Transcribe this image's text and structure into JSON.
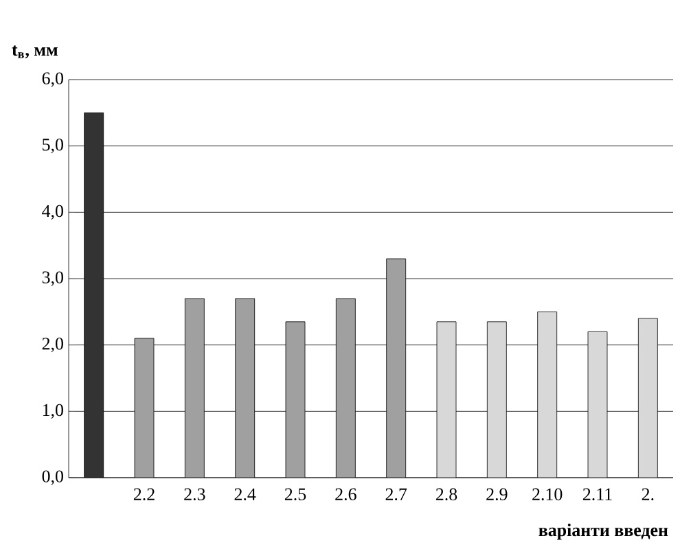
{
  "chart_data": {
    "type": "bar",
    "xlabel": "варіанти введен",
    "ylabel": "t$_{в}$, мм",
    "categories": [
      null,
      "2.2",
      "2.3",
      "2.4",
      "2.5",
      "2.6",
      "2.7",
      "2.8",
      "2.9",
      "2.10",
      "2.11",
      "2."
    ],
    "values": [
      5.5,
      2.1,
      2.7,
      2.7,
      2.35,
      2.7,
      3.3,
      2.35,
      2.35,
      2.5,
      2.2,
      2.4
    ],
    "colors": [
      "#333333",
      "#a0a0a0",
      "#a0a0a0",
      "#a0a0a0",
      "#a0a0a0",
      "#a0a0a0",
      "#a0a0a0",
      "#d8d8d8",
      "#d8d8d8",
      "#d8d8d8",
      "#d8d8d8",
      "#d8d8d8"
    ],
    "ylim": [
      0,
      6
    ],
    "yticks": [
      {
        "value": 0,
        "label": "0,0"
      },
      {
        "value": 1,
        "label": "1,0"
      },
      {
        "value": 2,
        "label": "2,0"
      },
      {
        "value": 3,
        "label": "3,0"
      },
      {
        "value": 4,
        "label": "4,0"
      },
      {
        "value": 5,
        "label": "5,0"
      },
      {
        "value": 6,
        "label": "6,0"
      }
    ],
    "grid": "y"
  }
}
